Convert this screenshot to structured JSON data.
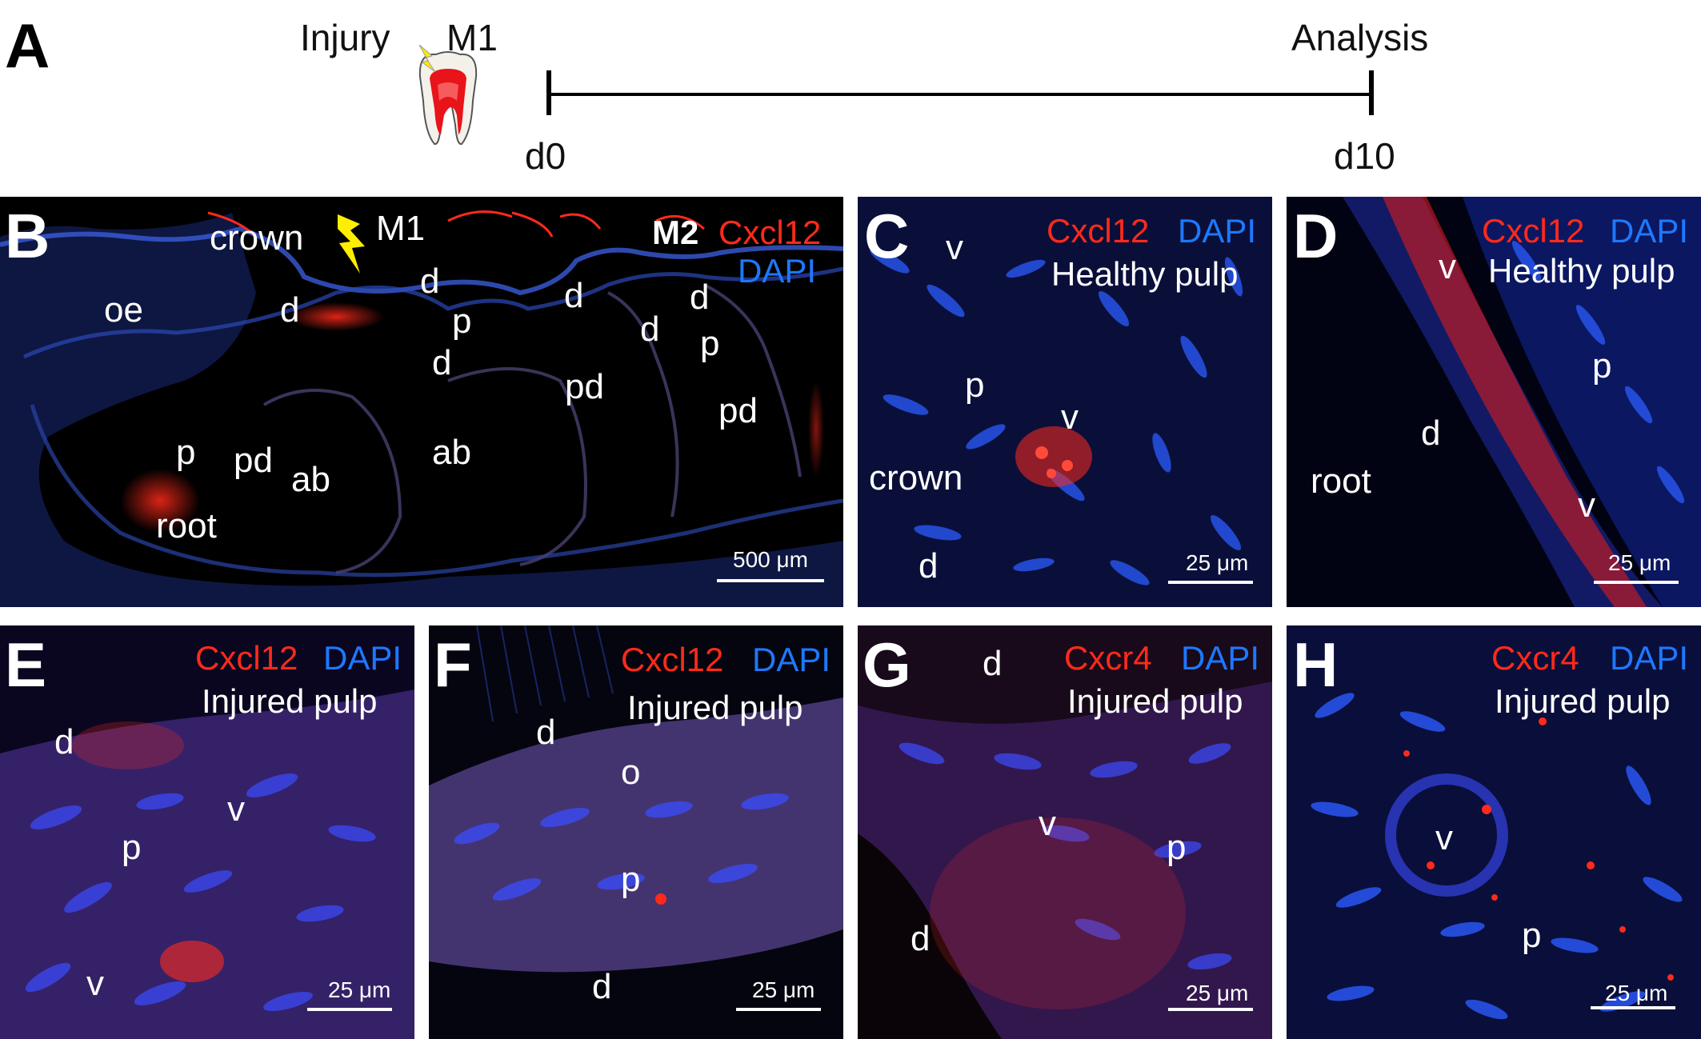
{
  "panel_a": {
    "label": "A",
    "injury": "Injury",
    "tooth": "M1",
    "analysis": "Analysis",
    "start": "d0",
    "end": "d10"
  },
  "panel_b": {
    "label": "B",
    "header_m2": "M2",
    "marker": "Cxcl12",
    "stain": "DAPI",
    "m1": "M1",
    "labels": [
      "crown",
      "oe",
      "d",
      "d",
      "p",
      "d",
      "d",
      "d",
      "d",
      "p",
      "pd",
      "pd",
      "p",
      "pd",
      "ab",
      "ab",
      "root"
    ],
    "scalebar": "500 μm"
  },
  "panel_c": {
    "label": "C",
    "marker": "Cxcl12",
    "stain": "DAPI",
    "condition": "Healthy pulp",
    "labels": [
      "v",
      "p",
      "v",
      "crown",
      "d"
    ],
    "scalebar": "25 μm"
  },
  "panel_d": {
    "label": "D",
    "marker": "Cxcl12",
    "stain": "DAPI",
    "condition": "Healthy pulp",
    "labels": [
      "v",
      "p",
      "d",
      "root",
      "v"
    ],
    "scalebar": "25 μm"
  },
  "panel_e": {
    "label": "E",
    "marker": "Cxcl12",
    "stain": "DAPI",
    "condition": "Injured pulp",
    "labels": [
      "d",
      "v",
      "p",
      "v"
    ],
    "scalebar": "25 μm"
  },
  "panel_f": {
    "label": "F",
    "marker": "Cxcl12",
    "stain": "DAPI",
    "condition": "Injured pulp",
    "labels": [
      "d",
      "o",
      "p",
      "d"
    ],
    "scalebar": "25 μm"
  },
  "panel_g": {
    "label": "G",
    "marker": "Cxcr4",
    "stain": "DAPI",
    "condition": "Injured pulp",
    "labels": [
      "d",
      "v",
      "p",
      "d"
    ],
    "scalebar": "25 μm"
  },
  "panel_h": {
    "label": "H",
    "marker": "Cxcr4",
    "stain": "DAPI",
    "condition": "Injured pulp",
    "labels": [
      "v",
      "p"
    ],
    "scalebar": "25 μm"
  },
  "colors": {
    "dapi": "#1e78ff",
    "marker": "#ff2a1a",
    "flash": "#ffee00"
  }
}
